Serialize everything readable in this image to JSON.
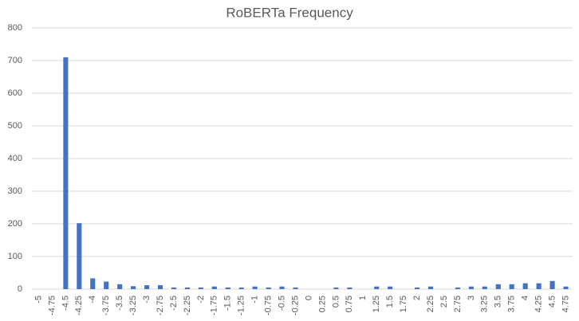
{
  "chart_data": {
    "type": "bar",
    "title": "RoBERTa Frequency",
    "categories": [
      "-5",
      "-4.75",
      "-4.5",
      "-4.25",
      "-4",
      "-3.75",
      "-3.5",
      "-3.25",
      "-3",
      "-2.75",
      "-2.5",
      "-2.25",
      "-2",
      "-1.75",
      "-1.5",
      "-1.25",
      "-1",
      "-0.75",
      "-0.5",
      "-0.25",
      "0",
      "0.25",
      "0.5",
      "0.75",
      "1",
      "1.25",
      "1.5",
      "1.75",
      "2",
      "2.25",
      "2.5",
      "2.75",
      "3",
      "3.25",
      "3.5",
      "3.75",
      "4",
      "4.25",
      "4.5",
      "4.75"
    ],
    "values": [
      0,
      0,
      710,
      202,
      33,
      23,
      15,
      9,
      12,
      12,
      5,
      5,
      5,
      8,
      5,
      5,
      8,
      5,
      8,
      5,
      0,
      0,
      5,
      5,
      0,
      8,
      8,
      0,
      5,
      8,
      0,
      5,
      8,
      8,
      15,
      15,
      18,
      18,
      25,
      8
    ],
    "color": "#4472c4",
    "ylim": [
      0,
      800
    ],
    "yticks": [
      0,
      100,
      200,
      300,
      400,
      500,
      600,
      700,
      800
    ],
    "grid": true
  }
}
